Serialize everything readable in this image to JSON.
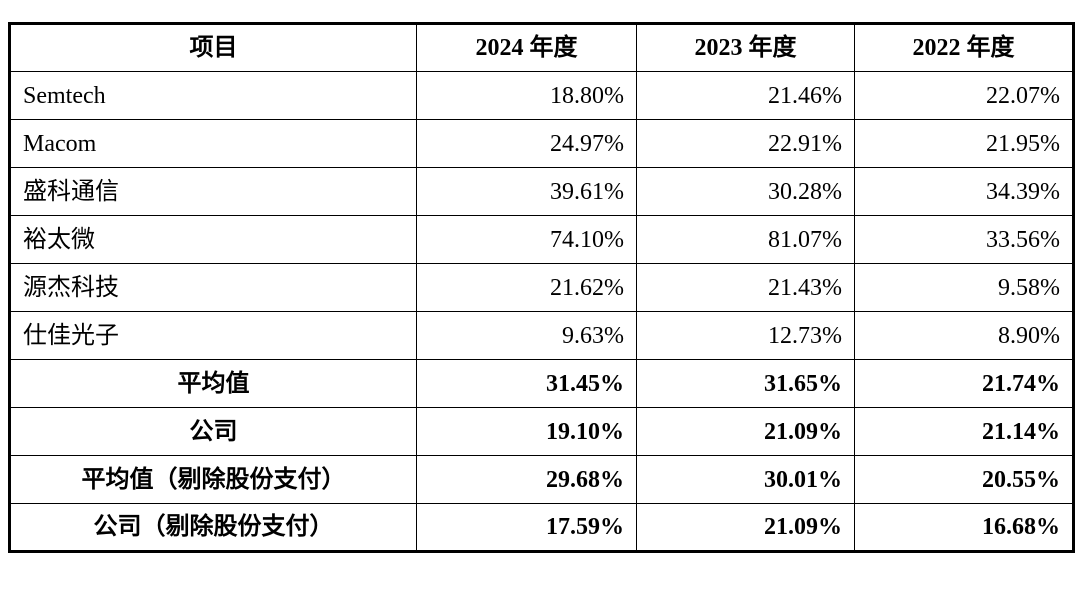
{
  "table": {
    "headers": [
      "项目",
      "2024 年度",
      "2023 年度",
      "2022 年度"
    ],
    "rows": [
      {
        "label": "Semtech",
        "values": [
          "18.80%",
          "21.46%",
          "22.07%"
        ]
      },
      {
        "label": "Macom",
        "values": [
          "24.97%",
          "22.91%",
          "21.95%"
        ]
      },
      {
        "label": "盛科通信",
        "values": [
          "39.61%",
          "30.28%",
          "34.39%"
        ]
      },
      {
        "label": "裕太微",
        "values": [
          "74.10%",
          "81.07%",
          "33.56%"
        ]
      },
      {
        "label": "源杰科技",
        "values": [
          "21.62%",
          "21.43%",
          "9.58%"
        ]
      },
      {
        "label": "仕佳光子",
        "values": [
          "9.63%",
          "12.73%",
          "8.90%"
        ]
      }
    ],
    "summary_rows": [
      {
        "label": "平均值",
        "values": [
          "31.45%",
          "31.65%",
          "21.74%"
        ]
      },
      {
        "label": "公司",
        "values": [
          "19.10%",
          "21.09%",
          "21.14%"
        ]
      },
      {
        "label": "平均值（剔除股份支付）",
        "values": [
          "29.68%",
          "30.01%",
          "20.55%"
        ]
      },
      {
        "label": "公司（剔除股份支付）",
        "values": [
          "17.59%",
          "21.09%",
          "16.68%"
        ]
      }
    ]
  }
}
